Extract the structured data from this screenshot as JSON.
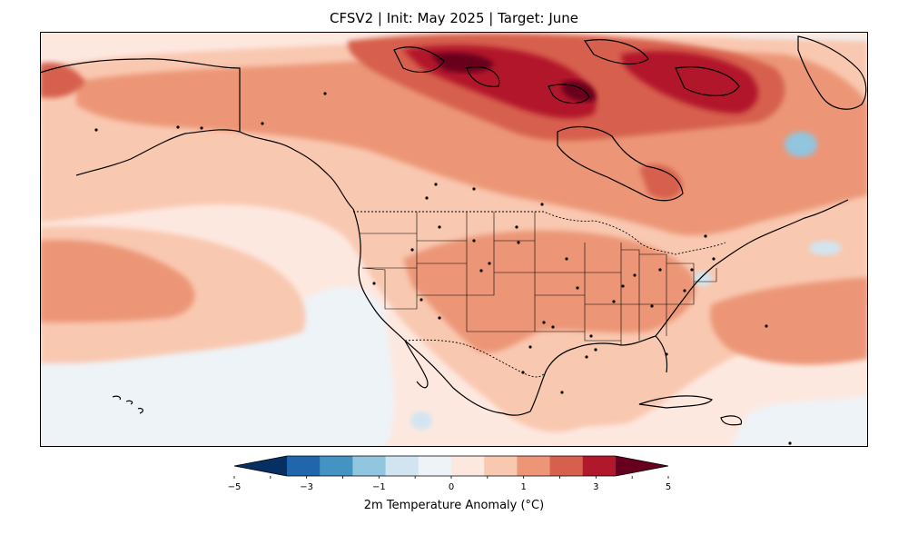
{
  "title": "CFSV2 | Init: May 2025 | Target: June",
  "colorbar": {
    "label": "2m Temperature Anomaly (°C)",
    "ticks": [
      "−5",
      "−3",
      "−1",
      "0",
      "1",
      "3",
      "5"
    ],
    "levels": [
      -5,
      -4,
      -3,
      -2,
      -1,
      -0.5,
      0,
      0.5,
      1,
      2,
      3,
      4,
      5
    ],
    "colors": [
      "#053061",
      "#2166ac",
      "#4393c3",
      "#92c5de",
      "#d1e5f0",
      "#eef3f7",
      "#fde8e0",
      "#f9c8b0",
      "#ec9677",
      "#d6604d",
      "#b2182b",
      "#67001f"
    ],
    "extend": "both"
  },
  "map": {
    "region": "North America",
    "field": "2m temperature anomaly",
    "projection": "plate carree",
    "features": [
      "coastlines",
      "country borders",
      "US state borders",
      "cities"
    ]
  }
}
